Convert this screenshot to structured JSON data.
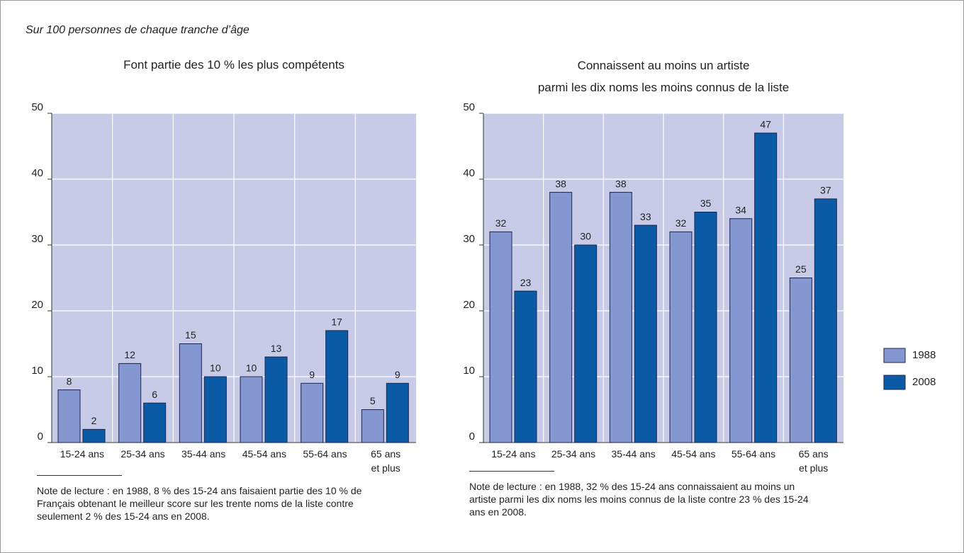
{
  "subtitle": "Sur 100 personnes de chaque tranche d’âge",
  "chart_data": [
    {
      "type": "bar",
      "title": "Font partie des 10 % les plus compétents",
      "categories": [
        "15-24 ans",
        "25-34 ans",
        "35-44 ans",
        "45-54 ans",
        "55-64 ans",
        "65 ans\net plus"
      ],
      "series": [
        {
          "color": "#8597d1",
          "values": [
            8,
            12,
            15,
            10,
            9,
            5
          ]
        },
        {
          "color": "#0b5aa6",
          "values": [
            2,
            6,
            10,
            13,
            17,
            9
          ]
        }
      ],
      "ylim": [
        0,
        50
      ],
      "yticks": [
        0,
        10,
        20,
        30,
        40,
        50
      ],
      "grid": true,
      "note": "Note de lecture : en 1988, 8 % des 15-24 ans faisaient partie des 10 % de Français obtenant le meilleur score sur les trente noms de la liste contre seulement 2 % des 15-24 ans en 2008."
    },
    {
      "type": "bar",
      "title": "Connaissent au moins un artiste\nparmi les dix noms les moins connus de la liste",
      "categories": [
        "15-24 ans",
        "25-34 ans",
        "35-44 ans",
        "45-54 ans",
        "55-64 ans",
        "65 ans\net plus"
      ],
      "series": [
        {
          "name": "1988",
          "color": "#8597d1",
          "values": [
            32,
            38,
            38,
            32,
            34,
            25
          ]
        },
        {
          "name": "2008",
          "color": "#0b5aa6",
          "values": [
            23,
            30,
            33,
            35,
            47,
            37
          ]
        }
      ],
      "ylim": [
        0,
        50
      ],
      "yticks": [
        0,
        10,
        20,
        30,
        40,
        50
      ],
      "grid": true,
      "note": "Note de lecture : en 1988, 32 % des 15-24 ans connaissaient au moins un artiste parmi les dix noms les moins connus de la liste contre 23 % des 15-24 ans en 2008."
    }
  ]
}
